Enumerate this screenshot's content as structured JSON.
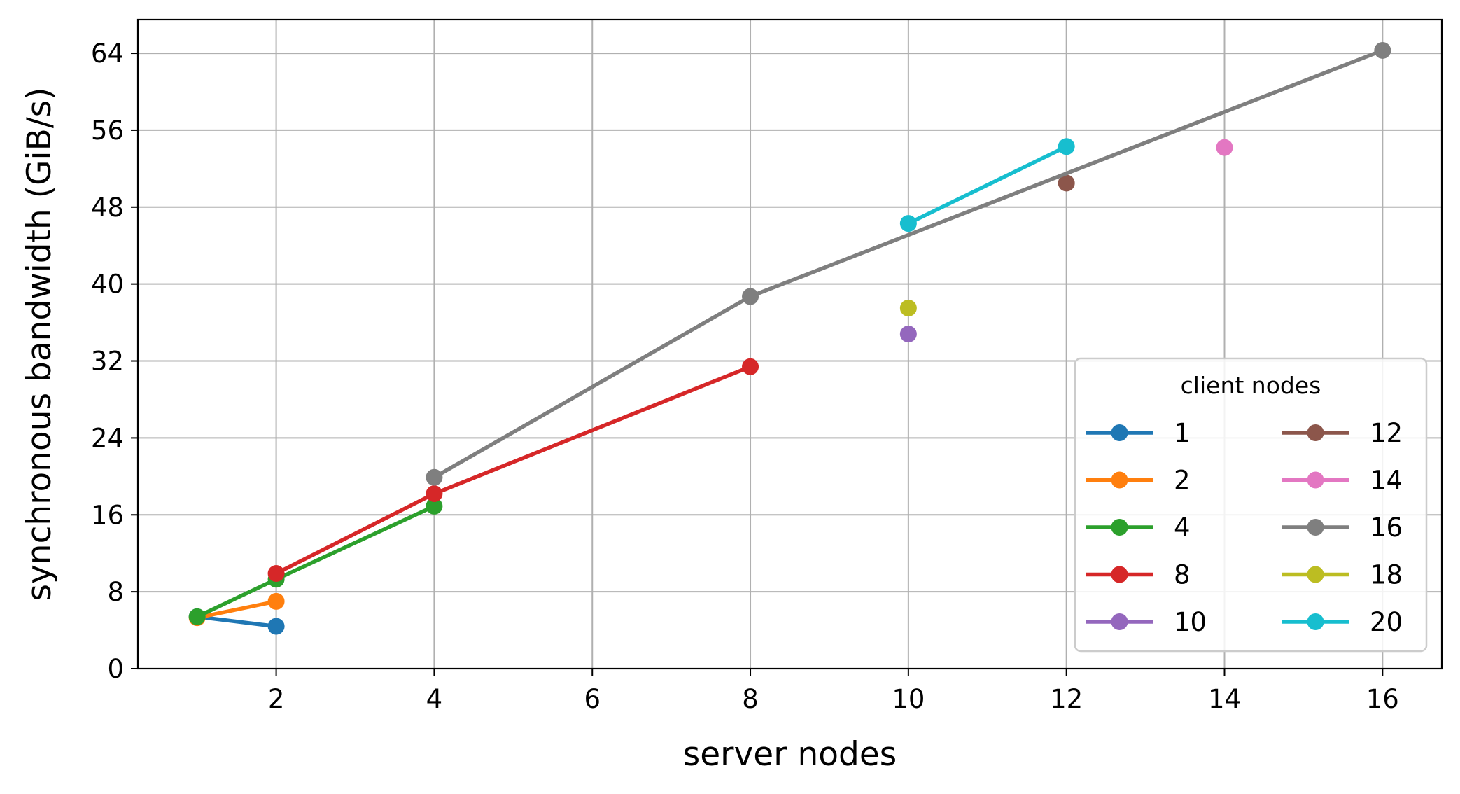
{
  "chart_data": {
    "type": "line",
    "title": "",
    "xlabel": "server nodes",
    "ylabel": "synchronous bandwidth (GiB/s)",
    "xlim": [
      0.25,
      16.75
    ],
    "ylim": [
      0,
      67.5
    ],
    "x_ticks": [
      2,
      4,
      6,
      8,
      10,
      12,
      14,
      16
    ],
    "x_tick_labels": [
      "2",
      "4",
      "6",
      "8",
      "10",
      "12",
      "14",
      "16"
    ],
    "y_ticks": [
      0,
      8,
      16,
      24,
      32,
      40,
      48,
      56,
      64
    ],
    "y_tick_labels": [
      "0",
      "8",
      "16",
      "24",
      "32",
      "40",
      "48",
      "56",
      "64"
    ],
    "grid": true,
    "legend": {
      "title": "client nodes",
      "placement": "lower-right",
      "columns": 2
    },
    "series": [
      {
        "name": "1",
        "color": "#1f77b4",
        "points": [
          [
            1,
            5.4
          ],
          [
            2,
            4.4
          ]
        ]
      },
      {
        "name": "2",
        "color": "#ff7f0e",
        "points": [
          [
            1,
            5.3
          ],
          [
            2,
            7.0
          ]
        ]
      },
      {
        "name": "4",
        "color": "#2ca02c",
        "points": [
          [
            1,
            5.4
          ],
          [
            2,
            9.3
          ],
          [
            4,
            16.9
          ]
        ]
      },
      {
        "name": "8",
        "color": "#d62728",
        "points": [
          [
            2,
            9.9
          ],
          [
            4,
            18.2
          ],
          [
            8,
            31.4
          ]
        ]
      },
      {
        "name": "10",
        "color": "#9467bd",
        "points": [
          [
            10,
            34.8
          ]
        ]
      },
      {
        "name": "12",
        "color": "#8c564b",
        "points": [
          [
            12,
            50.5
          ]
        ]
      },
      {
        "name": "14",
        "color": "#e377c2",
        "points": [
          [
            14,
            54.2
          ]
        ]
      },
      {
        "name": "16",
        "color": "#7f7f7f",
        "points": [
          [
            4,
            19.9
          ],
          [
            8,
            38.7
          ],
          [
            16,
            64.3
          ]
        ]
      },
      {
        "name": "18",
        "color": "#bcbd22",
        "points": [
          [
            10,
            37.5
          ]
        ]
      },
      {
        "name": "20",
        "color": "#17becf",
        "points": [
          [
            10,
            46.3
          ],
          [
            12,
            54.3
          ]
        ]
      }
    ]
  }
}
